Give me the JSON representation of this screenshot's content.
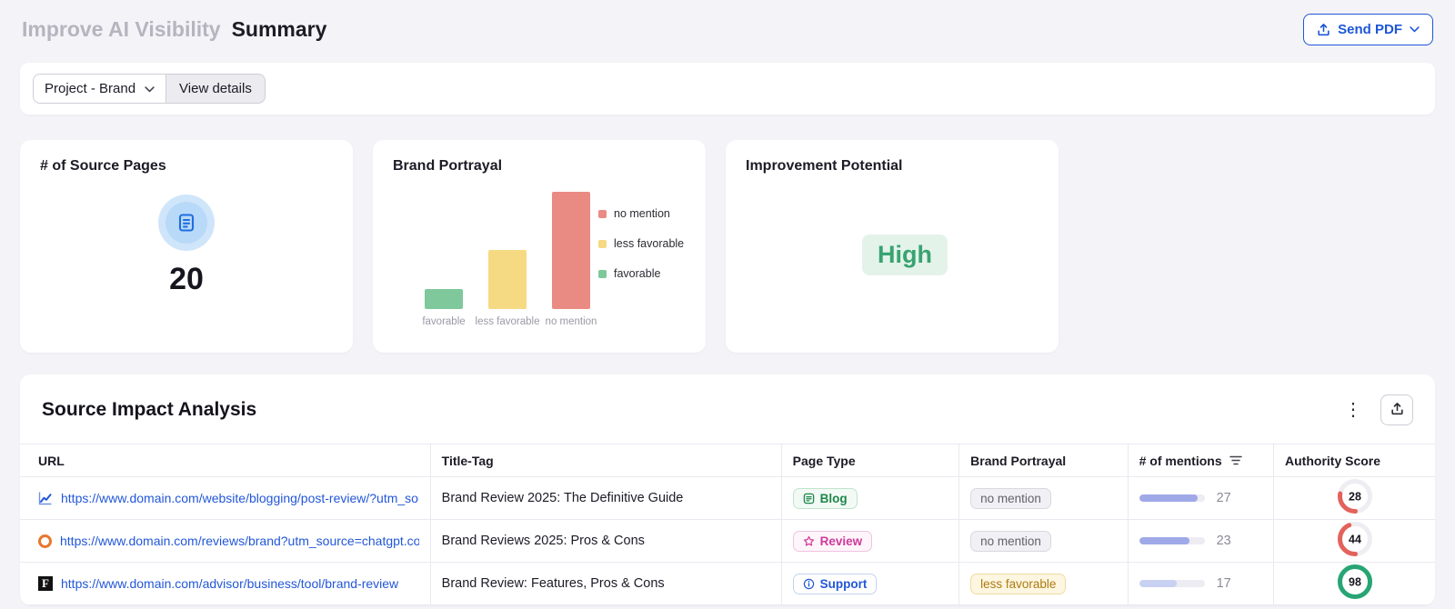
{
  "header": {
    "title_muted": "Improve AI Visibility",
    "title": "Summary",
    "send_pdf_label": "Send PDF"
  },
  "toolbar": {
    "project_dropdown_label": "Project - Brand",
    "view_details_label": "View details"
  },
  "cards": {
    "source_pages": {
      "title": "# of Source Pages",
      "value": "20"
    },
    "brand_portrayal": {
      "title": "Brand Portrayal"
    },
    "improvement": {
      "title": "Improvement Potential",
      "value": "High"
    }
  },
  "chart_data": {
    "type": "bar",
    "title": "Brand Portrayal",
    "categories": [
      "favorable",
      "less favorable",
      "no mention"
    ],
    "values": [
      2,
      6,
      12
    ],
    "colors": [
      "#7ec89b",
      "#f6d983",
      "#ea8b83"
    ],
    "legend": [
      {
        "label": "no mention",
        "color": "#ea8b83"
      },
      {
        "label": "less favorable",
        "color": "#f6d983"
      },
      {
        "label": "favorable",
        "color": "#7ec89b"
      }
    ],
    "xlabel": "",
    "ylabel": "",
    "ylim": [
      0,
      12
    ],
    "grid": false,
    "legend_position": "right"
  },
  "table": {
    "title": "Source Impact Analysis",
    "columns": [
      "URL",
      "Title-Tag",
      "Page Type",
      "Brand Portrayal",
      "# of mentions",
      "Authority Score"
    ],
    "sorted_column": "# of mentions",
    "mentions_scale_max": 30,
    "rows": [
      {
        "favicon": "line-chart-icon",
        "url": "https://www.domain.com/website/blogging/post-review/?utm_source=chatgpt.com",
        "title": "Brand Review 2025: The Definitive Guide",
        "page_type": "Blog",
        "page_type_style": "blog",
        "portrayal": "no mention",
        "portrayal_style": "neutral",
        "mentions": 27,
        "score": 28
      },
      {
        "favicon": "orange-ring-icon",
        "url": "https://www.domain.com/reviews/brand?utm_source=chatgpt.com",
        "title": "Brand Reviews 2025: Pros & Cons",
        "page_type": "Review",
        "page_type_style": "review",
        "portrayal": "no mention",
        "portrayal_style": "neutral",
        "mentions": 23,
        "score": 44
      },
      {
        "favicon": "forbes-f-icon",
        "url": "https://www.domain.com/advisor/business/tool/brand-review",
        "title": "Brand Review: Features, Pros & Cons",
        "page_type": "Support",
        "page_type_style": "support",
        "portrayal": "less favorable",
        "portrayal_style": "warning",
        "mentions": 17,
        "score": 98
      }
    ]
  },
  "colors": {
    "accent_blue": "#2257d8",
    "score_low": "#e3625c",
    "score_high": "#27a574",
    "mentions_bar": "#9fa9e8",
    "mentions_bar_light": "#c9d1f3"
  }
}
